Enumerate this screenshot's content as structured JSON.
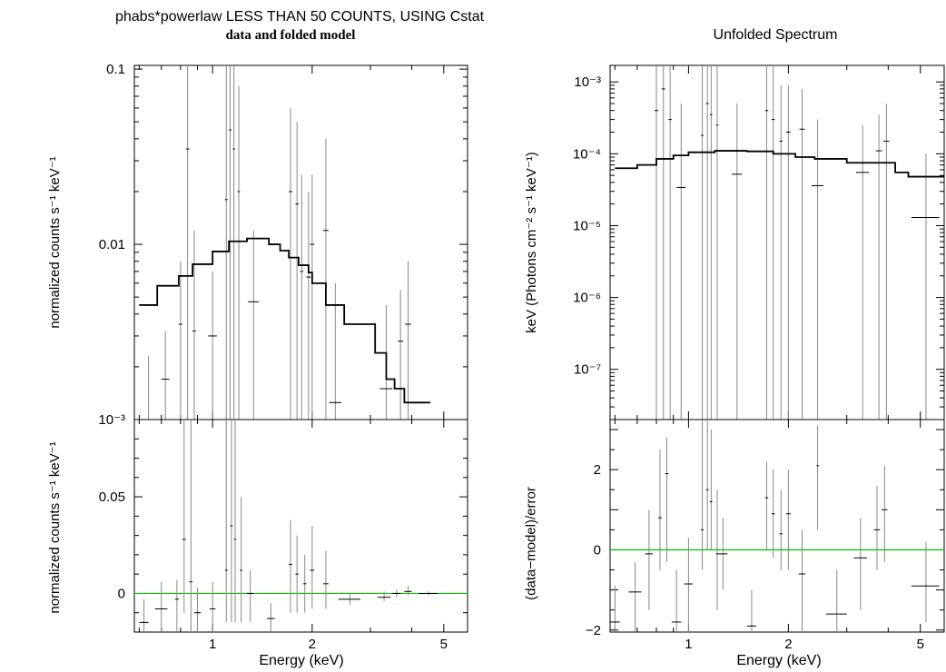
{
  "chart_data": [
    {
      "id": "left-top",
      "type": "line",
      "title": "phabs*powerlaw LESS THAN 50 COUNTS, USING Cstat",
      "subtitle": "data and folded model",
      "xlabel": "",
      "ylabel": "normalized counts s⁻¹ keV⁻¹",
      "xscale": "log",
      "yscale": "log",
      "xlim": [
        0.58,
        5.9
      ],
      "ylim": [
        0.001,
        0.105
      ],
      "yticks": [
        {
          "v": 0.1,
          "label": "0.1"
        },
        {
          "v": 0.01,
          "label": "0.01"
        },
        {
          "v": 0.001,
          "label": "10⁻³"
        }
      ],
      "xticks": [],
      "model_step": {
        "x": [
          0.6,
          0.68,
          0.79,
          0.87,
          1.0,
          1.12,
          1.27,
          1.48,
          1.6,
          1.7,
          1.82,
          1.95,
          2.0,
          2.2,
          2.5,
          3.1,
          3.35,
          3.55,
          3.8,
          4.55
        ],
        "y": [
          0.0045,
          0.0058,
          0.0066,
          0.0077,
          0.0091,
          0.0104,
          0.0108,
          0.01,
          0.0092,
          0.0084,
          0.0076,
          0.0069,
          0.006,
          0.0045,
          0.0035,
          0.0024,
          0.0017,
          0.0015,
          0.00125,
          null
        ]
      },
      "data_points": [
        {
          "x": 0.64,
          "y": 0.0008,
          "xe": 0.03,
          "yl": 0.0001,
          "yh": 0.0023
        },
        {
          "x": 0.72,
          "y": 0.0017,
          "xe": 0.02,
          "yl": 0.0001,
          "yh": 0.0032
        },
        {
          "x": 0.8,
          "y": 0.0035,
          "xe": 0.01,
          "yl": 0.0001,
          "yh": 0.008
        },
        {
          "x": 0.84,
          "y": 0.035,
          "xe": 0.01,
          "yl": 0.001,
          "yh": 0.105
        },
        {
          "x": 0.88,
          "y": 0.0032,
          "xe": 0.01,
          "yl": 0.0001,
          "yh": 0.012
        },
        {
          "x": 1.0,
          "y": 0.003,
          "xe": 0.03,
          "yl": 0.0001,
          "yh": 0.007
        },
        {
          "x": 1.1,
          "y": 0.018,
          "xe": 0.01,
          "yl": 0.001,
          "yh": 0.105
        },
        {
          "x": 1.13,
          "y": 0.045,
          "xe": 0.01,
          "yl": 0.001,
          "yh": 0.105
        },
        {
          "x": 1.16,
          "y": 0.035,
          "xe": 0.01,
          "yl": 0.001,
          "yh": 0.105
        },
        {
          "x": 1.2,
          "y": 0.02,
          "xe": 0.01,
          "yl": 0.001,
          "yh": 0.08
        },
        {
          "x": 1.33,
          "y": 0.0047,
          "xe": 0.05,
          "yl": 0.0001,
          "yh": 0.012
        },
        {
          "x": 1.72,
          "y": 0.02,
          "xe": 0.02,
          "yl": 0.001,
          "yh": 0.06
        },
        {
          "x": 1.8,
          "y": 0.017,
          "xe": 0.02,
          "yl": 0.001,
          "yh": 0.05
        },
        {
          "x": 1.86,
          "y": 0.007,
          "xe": 0.02,
          "yl": 0.001,
          "yh": 0.025
        },
        {
          "x": 1.95,
          "y": 0.0065,
          "xe": 0.03,
          "yl": 0.0001,
          "yh": 0.02
        },
        {
          "x": 2.0,
          "y": 0.01,
          "xe": 0.03,
          "yl": 0.0001,
          "yh": 0.025
        },
        {
          "x": 2.2,
          "y": 0.012,
          "xe": 0.04,
          "yl": 0.001,
          "yh": 0.04
        },
        {
          "x": 2.35,
          "y": 0.00125,
          "xe": 0.1,
          "yl": 0.0001,
          "yh": 0.006
        },
        {
          "x": 3.35,
          "y": 0.0015,
          "xe": 0.15,
          "yl": 0.0001,
          "yh": 0.0045
        },
        {
          "x": 3.7,
          "y": 0.0028,
          "xe": 0.07,
          "yl": 0.0001,
          "yh": 0.0055
        },
        {
          "x": 3.9,
          "y": 0.0035,
          "xe": 0.08,
          "yl": 0.0001,
          "yh": 0.008
        }
      ]
    },
    {
      "id": "left-bottom",
      "type": "line",
      "xlabel": "Energy (keV)",
      "ylabel": "normalized counts s⁻¹ keV⁻¹",
      "xscale": "log",
      "yscale": "linear",
      "xlim": [
        0.58,
        5.9
      ],
      "ylim": [
        -0.02,
        0.09
      ],
      "yticks": [
        {
          "v": 0.05,
          "label": "0.05"
        },
        {
          "v": 0,
          "label": "0"
        }
      ],
      "xticks": [
        {
          "v": 1,
          "label": "1"
        },
        {
          "v": 2,
          "label": "2"
        },
        {
          "v": 5,
          "label": "5"
        }
      ],
      "zero_line_color": "#00c000",
      "data_points": [
        {
          "x": 0.62,
          "y": -0.015,
          "xe": 0.02,
          "yl": -0.02,
          "yh": -0.003
        },
        {
          "x": 0.7,
          "y": -0.008,
          "xe": 0.03,
          "yl": -0.02,
          "yh": 0.006
        },
        {
          "x": 0.78,
          "y": -0.003,
          "xe": 0.01,
          "yl": -0.02,
          "yh": 0.007
        },
        {
          "x": 0.82,
          "y": 0.028,
          "xe": 0.01,
          "yl": -0.01,
          "yh": 0.09
        },
        {
          "x": 0.86,
          "y": 0.006,
          "xe": 0.01,
          "yl": -0.02,
          "yh": 0.09
        },
        {
          "x": 0.9,
          "y": -0.01,
          "xe": 0.02,
          "yl": -0.02,
          "yh": 0.003
        },
        {
          "x": 1.0,
          "y": -0.008,
          "xe": 0.02,
          "yl": -0.02,
          "yh": 0.006
        },
        {
          "x": 1.1,
          "y": 0.012,
          "xe": 0.01,
          "yl": -0.015,
          "yh": 0.09
        },
        {
          "x": 1.14,
          "y": 0.035,
          "xe": 0.01,
          "yl": -0.015,
          "yh": 0.09
        },
        {
          "x": 1.17,
          "y": 0.028,
          "xe": 0.01,
          "yl": -0.015,
          "yh": 0.09
        },
        {
          "x": 1.22,
          "y": 0.012,
          "xe": 0.01,
          "yl": -0.015,
          "yh": 0.05
        },
        {
          "x": 1.3,
          "y": 0.0,
          "xe": 0.03,
          "yl": -0.015,
          "yh": 0.012
        },
        {
          "x": 1.5,
          "y": -0.013,
          "xe": 0.04,
          "yl": -0.02,
          "yh": -0.005
        },
        {
          "x": 1.72,
          "y": 0.015,
          "xe": 0.02,
          "yl": -0.01,
          "yh": 0.038
        },
        {
          "x": 1.8,
          "y": 0.01,
          "xe": 0.02,
          "yl": -0.01,
          "yh": 0.03
        },
        {
          "x": 1.9,
          "y": 0.005,
          "xe": 0.02,
          "yl": -0.01,
          "yh": 0.02
        },
        {
          "x": 2.0,
          "y": 0.012,
          "xe": 0.03,
          "yl": -0.008,
          "yh": 0.035
        },
        {
          "x": 2.2,
          "y": 0.005,
          "xe": 0.04,
          "yl": -0.008,
          "yh": 0.022
        },
        {
          "x": 2.6,
          "y": -0.003,
          "xe": 0.2,
          "yl": -0.006,
          "yh": 0.0
        },
        {
          "x": 3.3,
          "y": -0.002,
          "xe": 0.15,
          "yl": -0.004,
          "yh": 0.001
        },
        {
          "x": 3.6,
          "y": 0.0,
          "xe": 0.1,
          "yl": -0.002,
          "yh": 0.002
        },
        {
          "x": 3.9,
          "y": 0.001,
          "xe": 0.1,
          "yl": -0.001,
          "yh": 0.004
        },
        {
          "x": 4.5,
          "y": 0.0,
          "xe": 0.3,
          "yl": -0.001,
          "yh": 0.001
        }
      ]
    },
    {
      "id": "right-top",
      "type": "line",
      "title": "Unfolded Spectrum",
      "xlabel": "",
      "ylabel": "keV (Photons cm⁻² s⁻¹ keV⁻¹)",
      "xscale": "log",
      "yscale": "log",
      "xlim": [
        0.58,
        5.9
      ],
      "ylim": [
        2e-08,
        0.0017
      ],
      "yticks": [
        {
          "v": 0.001,
          "label": "10⁻³"
        },
        {
          "v": 0.0001,
          "label": "10⁻⁴"
        },
        {
          "v": 1e-05,
          "label": "10⁻⁵"
        },
        {
          "v": 1e-06,
          "label": "10⁻⁶"
        },
        {
          "v": 1e-07,
          "label": "10⁻⁷"
        }
      ],
      "xticks": [],
      "model_step": {
        "x": [
          0.6,
          0.7,
          0.8,
          0.9,
          1.0,
          1.2,
          1.5,
          1.8,
          2.1,
          2.4,
          3.0,
          4.2,
          4.6,
          5.9
        ],
        "y": [
          6.3e-05,
          7e-05,
          8.5e-05,
          9.5e-05,
          0.000105,
          0.00011,
          0.000108,
          0.0001,
          9e-05,
          8.5e-05,
          7.5e-05,
          5.5e-05,
          4.8e-05,
          null
        ]
      },
      "data_points": [
        {
          "x": 0.8,
          "y": 0.0004,
          "xe": 0.01,
          "yl": 2e-08,
          "yh": 0.0017
        },
        {
          "x": 0.84,
          "y": 0.0008,
          "xe": 0.01,
          "yl": 2e-08,
          "yh": 0.0017
        },
        {
          "x": 0.88,
          "y": 0.0003,
          "xe": 0.01,
          "yl": 2e-08,
          "yh": 0.0017
        },
        {
          "x": 0.95,
          "y": 3.4e-05,
          "xe": 0.03,
          "yl": 2e-08,
          "yh": 0.0005
        },
        {
          "x": 1.1,
          "y": 0.00018,
          "xe": 0.01,
          "yl": 2e-08,
          "yh": 0.0017
        },
        {
          "x": 1.14,
          "y": 0.0005,
          "xe": 0.01,
          "yl": 2e-08,
          "yh": 0.0017
        },
        {
          "x": 1.17,
          "y": 0.00035,
          "xe": 0.01,
          "yl": 2e-08,
          "yh": 0.0017
        },
        {
          "x": 1.22,
          "y": 0.00025,
          "xe": 0.01,
          "yl": 2e-08,
          "yh": 0.0017
        },
        {
          "x": 1.4,
          "y": 5.2e-05,
          "xe": 0.05,
          "yl": 2e-08,
          "yh": 0.0005
        },
        {
          "x": 1.72,
          "y": 0.0004,
          "xe": 0.02,
          "yl": 2e-08,
          "yh": 0.0017
        },
        {
          "x": 1.8,
          "y": 0.0003,
          "xe": 0.02,
          "yl": 2e-08,
          "yh": 0.0017
        },
        {
          "x": 1.9,
          "y": 0.00015,
          "xe": 0.02,
          "yl": 2e-08,
          "yh": 0.0009
        },
        {
          "x": 2.0,
          "y": 0.0002,
          "xe": 0.03,
          "yl": 2e-08,
          "yh": 0.0009
        },
        {
          "x": 2.2,
          "y": 0.00022,
          "xe": 0.04,
          "yl": 2e-08,
          "yh": 0.0008
        },
        {
          "x": 2.45,
          "y": 3.6e-05,
          "xe": 0.1,
          "yl": 2e-08,
          "yh": 0.0003
        },
        {
          "x": 3.35,
          "y": 5.5e-05,
          "xe": 0.15,
          "yl": 2e-08,
          "yh": 0.00025
        },
        {
          "x": 3.75,
          "y": 0.00011,
          "xe": 0.08,
          "yl": 2e-08,
          "yh": 0.00035
        },
        {
          "x": 3.95,
          "y": 0.00015,
          "xe": 0.08,
          "yl": 2e-08,
          "yh": 0.0005
        },
        {
          "x": 5.2,
          "y": 1.3e-05,
          "xe": 0.5,
          "yl": 2e-08,
          "yh": 0.0001
        }
      ]
    },
    {
      "id": "right-bottom",
      "type": "line",
      "xlabel": "Energy (keV)",
      "ylabel": "(data−model)/error",
      "xscale": "log",
      "yscale": "linear",
      "xlim": [
        0.58,
        5.9
      ],
      "ylim": [
        -2.05,
        3.25
      ],
      "yticks": [
        {
          "v": 2,
          "label": "2"
        },
        {
          "v": 0,
          "label": "0"
        },
        {
          "v": -2,
          "label": "−2"
        }
      ],
      "xticks": [
        {
          "v": 1,
          "label": "1"
        },
        {
          "v": 2,
          "label": "2"
        },
        {
          "v": 5,
          "label": "5"
        }
      ],
      "zero_line_color": "#00c000",
      "data_points": [
        {
          "x": 0.6,
          "y": -1.8,
          "xe": 0.02,
          "yl": -2.05,
          "yh": -0.9
        },
        {
          "x": 0.69,
          "y": -1.05,
          "xe": 0.03,
          "yl": -2.05,
          "yh": -0.3
        },
        {
          "x": 0.76,
          "y": -0.1,
          "xe": 0.02,
          "yl": -1.5,
          "yh": 1.0
        },
        {
          "x": 0.82,
          "y": 0.8,
          "xe": 0.01,
          "yl": -0.5,
          "yh": 2.5
        },
        {
          "x": 0.86,
          "y": 1.9,
          "xe": 0.01,
          "yl": -0.3,
          "yh": 2.8
        },
        {
          "x": 0.92,
          "y": -1.8,
          "xe": 0.03,
          "yl": -2.05,
          "yh": -0.5
        },
        {
          "x": 1.0,
          "y": -0.85,
          "xe": 0.03,
          "yl": -2.05,
          "yh": 0.3
        },
        {
          "x": 1.1,
          "y": 0.5,
          "xe": 0.01,
          "yl": -0.5,
          "yh": 3.25
        },
        {
          "x": 1.14,
          "y": 1.5,
          "xe": 0.01,
          "yl": 0.0,
          "yh": 3.25
        },
        {
          "x": 1.17,
          "y": 1.2,
          "xe": 0.01,
          "yl": 0.0,
          "yh": 3.0
        },
        {
          "x": 1.22,
          "y": -0.1,
          "xe": 0.01,
          "yl": -1.5,
          "yh": 1.5
        },
        {
          "x": 1.27,
          "y": -0.1,
          "xe": 0.04,
          "yl": -1.0,
          "yh": 0.8
        },
        {
          "x": 1.55,
          "y": -1.9,
          "xe": 0.05,
          "yl": -2.05,
          "yh": -1.0
        },
        {
          "x": 1.72,
          "y": 1.3,
          "xe": 0.02,
          "yl": 0.0,
          "yh": 2.2
        },
        {
          "x": 1.8,
          "y": 0.9,
          "xe": 0.02,
          "yl": -0.2,
          "yh": 2.0
        },
        {
          "x": 1.9,
          "y": 0.4,
          "xe": 0.02,
          "yl": -0.5,
          "yh": 1.5
        },
        {
          "x": 2.0,
          "y": 0.9,
          "xe": 0.03,
          "yl": -0.5,
          "yh": 2.0
        },
        {
          "x": 2.2,
          "y": -0.6,
          "xe": 0.05,
          "yl": -2.05,
          "yh": 0.5
        },
        {
          "x": 2.45,
          "y": 2.1,
          "xe": 0.02,
          "yl": 0.5,
          "yh": 3.1
        },
        {
          "x": 2.8,
          "y": -1.6,
          "xe": 0.2,
          "yl": -2.05,
          "yh": -0.5
        },
        {
          "x": 3.3,
          "y": -0.2,
          "xe": 0.15,
          "yl": -1.5,
          "yh": 0.8
        },
        {
          "x": 3.7,
          "y": 0.5,
          "xe": 0.08,
          "yl": -0.5,
          "yh": 1.6
        },
        {
          "x": 3.9,
          "y": 1.0,
          "xe": 0.08,
          "yl": -0.3,
          "yh": 2.1
        },
        {
          "x": 5.2,
          "y": -0.9,
          "xe": 0.5,
          "yl": -1.8,
          "yh": 0.2
        }
      ]
    }
  ]
}
